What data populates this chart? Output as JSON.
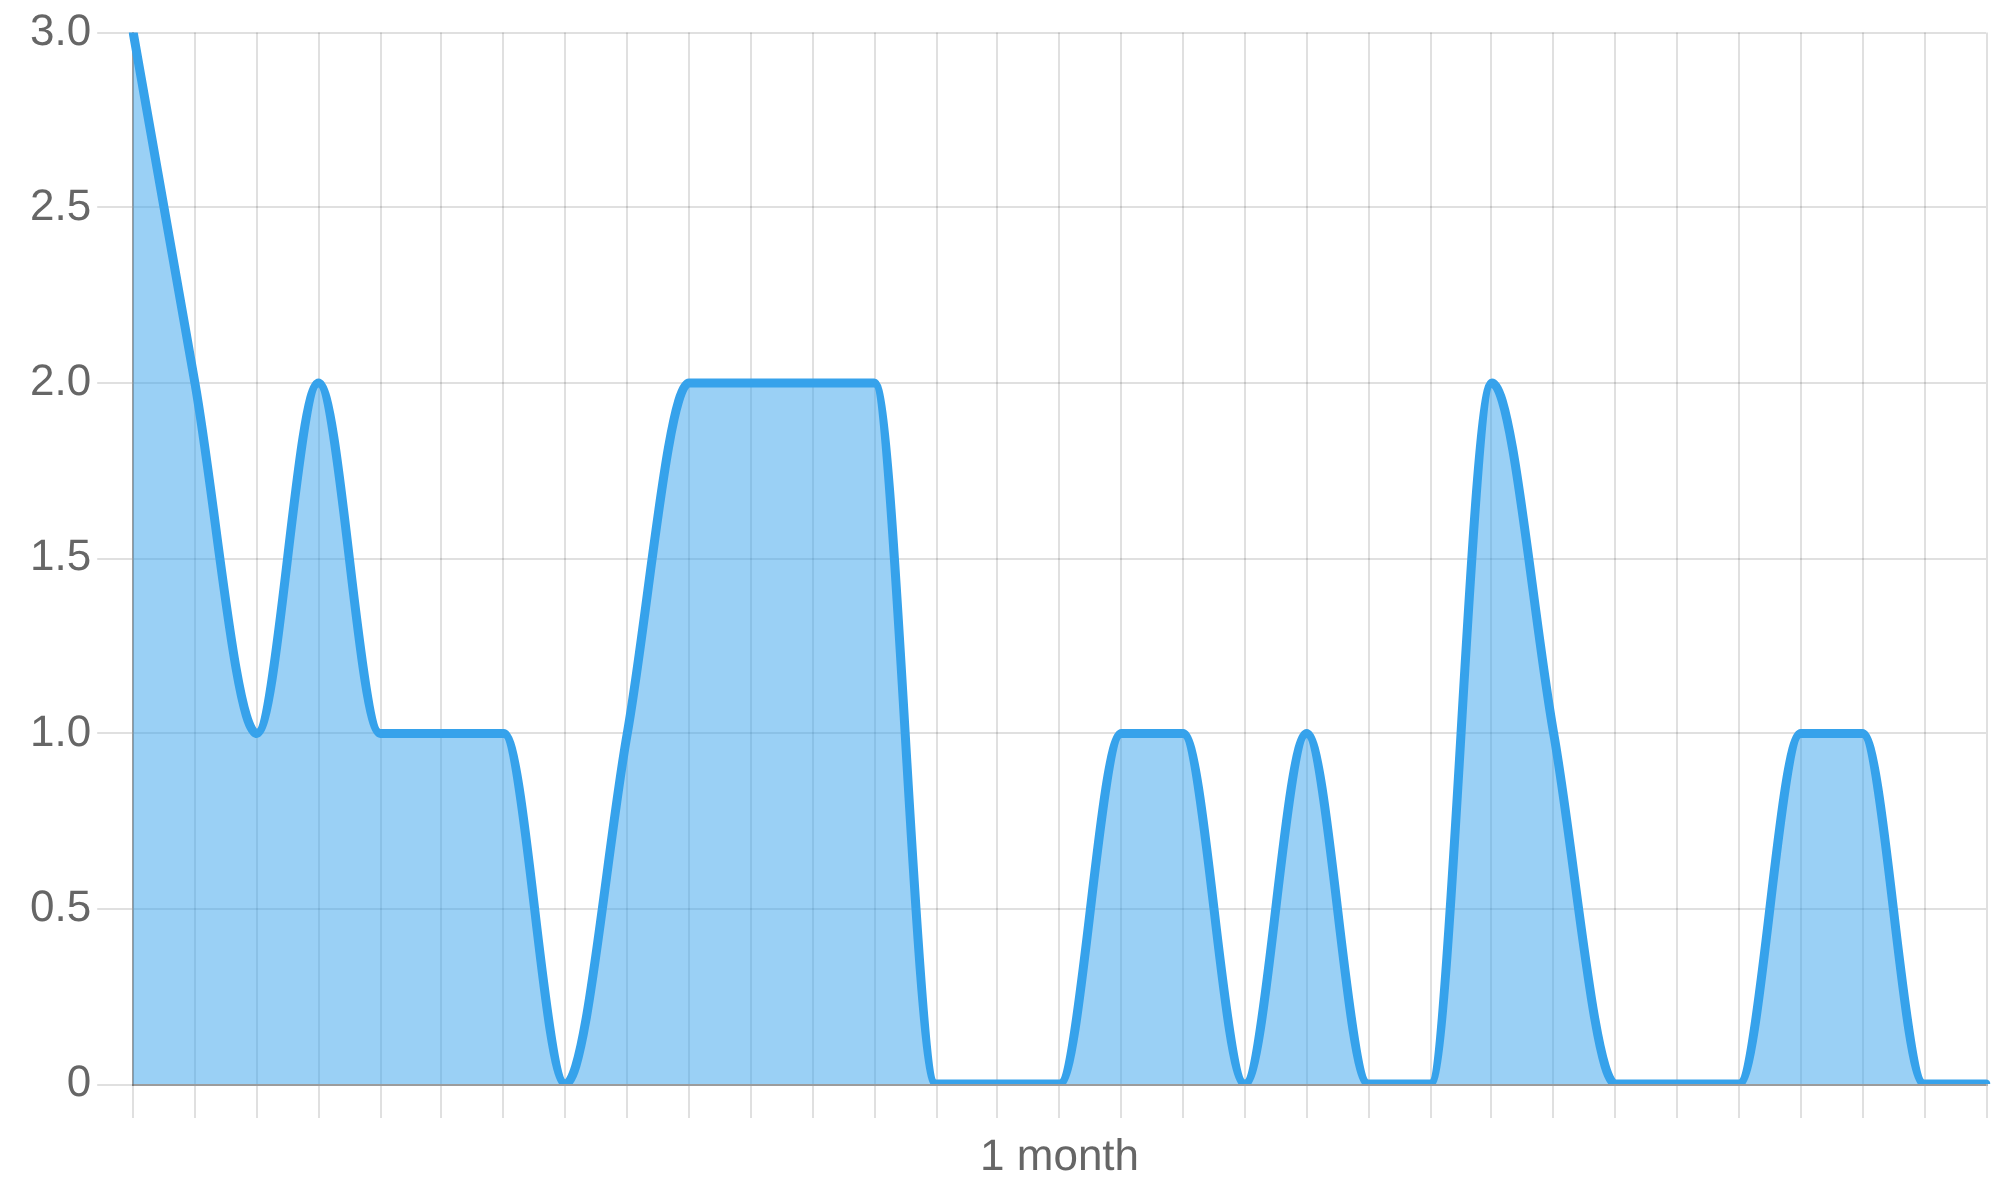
{
  "chart_data": {
    "type": "area",
    "xlabel": "1 month",
    "categories": [
      null,
      null,
      null,
      null,
      null,
      null,
      null,
      null,
      null,
      null,
      null,
      null,
      null,
      null,
      null,
      null,
      null,
      null,
      null,
      null,
      null,
      null,
      null,
      null,
      null,
      null,
      null,
      null,
      null,
      null,
      null
    ],
    "series": [
      {
        "color": "#36a2eb",
        "values": [
          3,
          2,
          1,
          2,
          1,
          1,
          1,
          0,
          1,
          2,
          2,
          2,
          2,
          0,
          0,
          0,
          1,
          1,
          0,
          1,
          0,
          0,
          2,
          1,
          0,
          0,
          0,
          1,
          1,
          0,
          0
        ]
      }
    ],
    "ylim": [
      0,
      3
    ],
    "yticks": [
      0,
      0.5,
      {
        "value": 1,
        "label": "1.0"
      },
      1.5,
      {
        "value": 2,
        "label": "2.0"
      },
      2.5,
      {
        "value": 3,
        "label": "3.0"
      }
    ],
    "grid": true
  }
}
